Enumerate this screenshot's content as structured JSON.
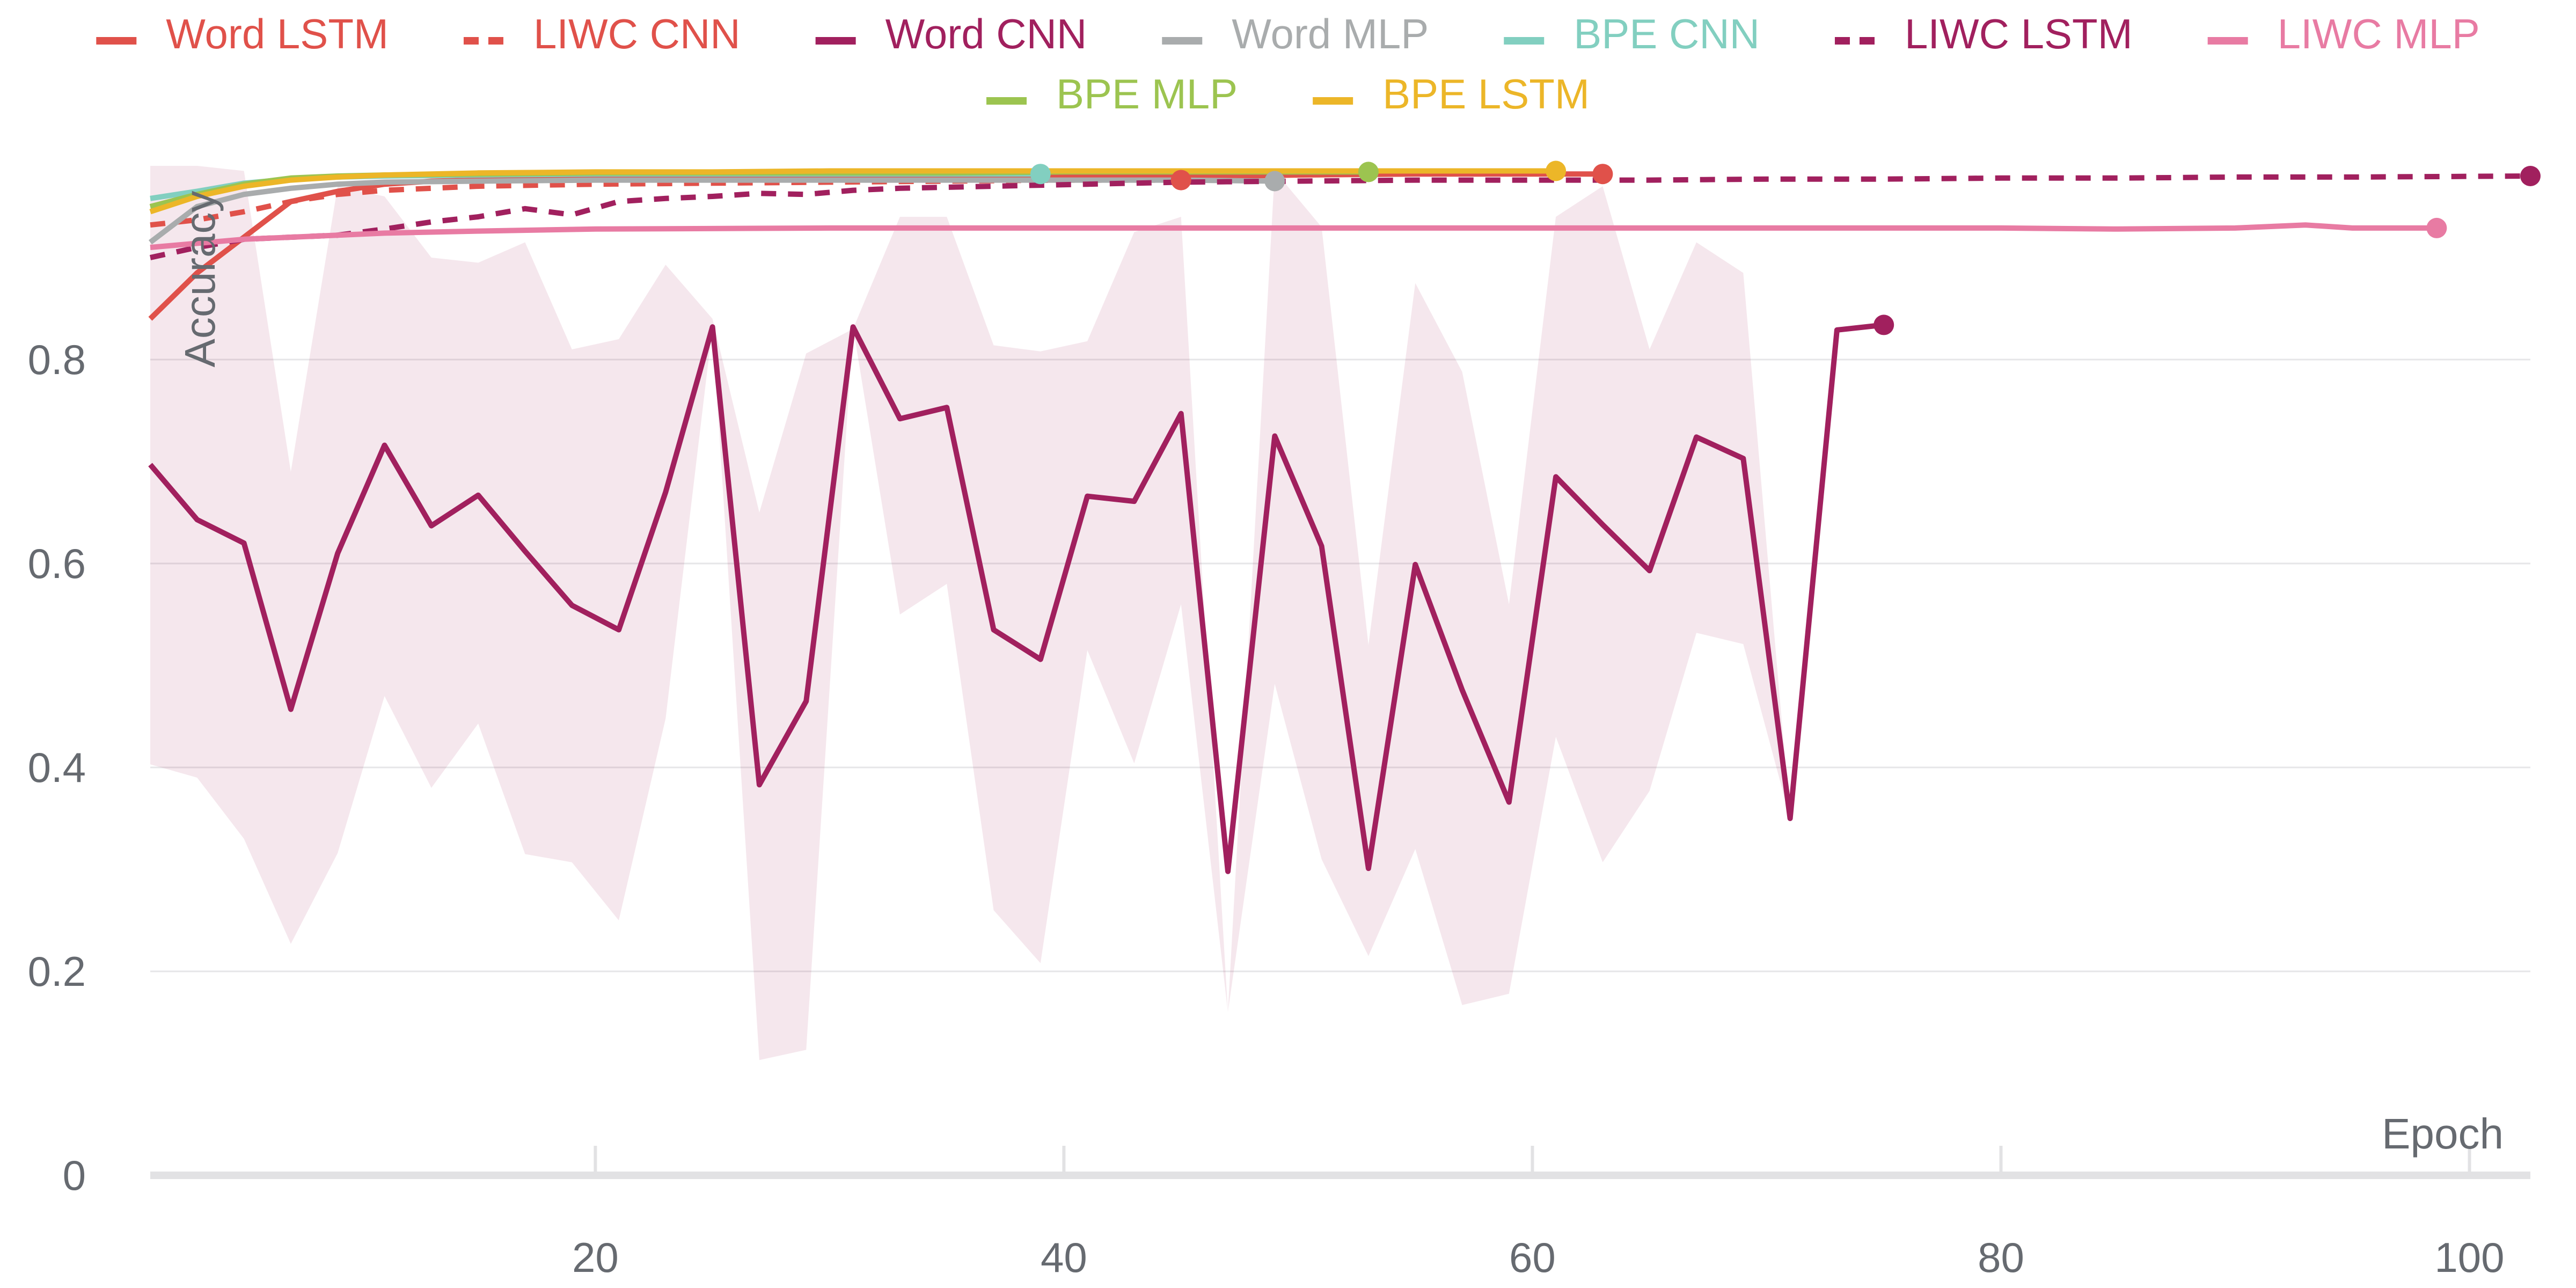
{
  "chart_data": {
    "type": "line",
    "title": "",
    "xlabel": "Epoch",
    "ylabel": "Accuracy",
    "xlim": [
      1,
      102.6
    ],
    "ylim": [
      0,
      1
    ],
    "x_ticks": [
      20,
      40,
      60,
      80,
      100
    ],
    "y_ticks": [
      0,
      0.2,
      0.4,
      0.6,
      0.8
    ],
    "y_tick_labels": [
      "0",
      "0.2",
      "0.4",
      "0.6",
      "0.8"
    ],
    "grid": "horizontal",
    "legend_position": "top-center",
    "series": [
      {
        "name": "Word LSTM",
        "color": "#e0514a",
        "dash": false,
        "x": [
          1,
          3,
          5,
          7,
          9,
          11,
          13,
          15,
          17,
          20,
          25,
          30,
          35,
          40,
          45,
          50,
          55,
          60,
          63
        ],
        "y": [
          0.84,
          0.885,
          0.92,
          0.955,
          0.965,
          0.972,
          0.975,
          0.976,
          0.977,
          0.978,
          0.979,
          0.979,
          0.98,
          0.98,
          0.979,
          0.981,
          0.982,
          0.982,
          0.982
        ]
      },
      {
        "name": "LIWC CNN",
        "color": "#e0514a",
        "dash": true,
        "x": [
          1,
          3,
          5,
          7,
          9,
          11,
          13,
          15,
          20,
          25,
          30,
          35,
          40,
          45
        ],
        "y": [
          0.932,
          0.937,
          0.945,
          0.955,
          0.962,
          0.966,
          0.968,
          0.97,
          0.972,
          0.973,
          0.974,
          0.975,
          0.976,
          0.976
        ]
      },
      {
        "name": "Word CNN",
        "color": "#a1205e",
        "dash": false,
        "x": [
          1,
          3,
          5,
          7,
          9,
          11,
          13,
          15,
          17,
          19,
          21,
          23,
          25,
          27,
          29,
          31,
          33,
          35,
          37,
          39,
          41,
          43,
          45,
          47,
          49,
          51,
          53,
          55,
          57,
          59,
          61,
          63,
          65,
          67,
          69,
          71,
          73,
          75
        ],
        "y": [
          0.697,
          0.643,
          0.62,
          0.457,
          0.61,
          0.716,
          0.637,
          0.667,
          0.612,
          0.559,
          0.535,
          0.67,
          0.832,
          0.383,
          0.465,
          0.832,
          0.742,
          0.753,
          0.535,
          0.506,
          0.666,
          0.661,
          0.747,
          0.298,
          0.725,
          0.617,
          0.301,
          0.599,
          0.476,
          0.366,
          0.685,
          0.638,
          0.593,
          0.724,
          0.703,
          0.35,
          0.829,
          0.834
        ],
        "band_upper": [
          0.99,
          0.99,
          0.985,
          0.69,
          0.97,
          0.96,
          0.9,
          0.895,
          0.915,
          0.81,
          0.82,
          0.893,
          0.84,
          0.65,
          0.806,
          0.83,
          0.94,
          0.94,
          0.814,
          0.808,
          0.818,
          0.925,
          0.94,
          0.16,
          0.985,
          0.93,
          0.52,
          0.875,
          0.788,
          0.56,
          0.94,
          0.97,
          0.81,
          0.915,
          0.885,
          0.35,
          0.829,
          0.834
        ],
        "band_lower": [
          0.403,
          0.39,
          0.33,
          0.227,
          0.316,
          0.47,
          0.38,
          0.443,
          0.315,
          0.307,
          0.25,
          0.448,
          0.832,
          0.113,
          0.123,
          0.832,
          0.55,
          0.58,
          0.26,
          0.208,
          0.515,
          0.404,
          0.56,
          0.16,
          0.482,
          0.31,
          0.215,
          0.32,
          0.167,
          0.178,
          0.43,
          0.307,
          0.377,
          0.532,
          0.521,
          0.35,
          0.829,
          0.834
        ]
      },
      {
        "name": "Word MLP",
        "color": "#a9acad",
        "dash": false,
        "x": [
          1,
          3,
          5,
          7,
          9,
          11,
          15,
          20,
          25,
          30,
          35,
          40,
          45,
          49
        ],
        "y": [
          0.915,
          0.95,
          0.962,
          0.968,
          0.972,
          0.974,
          0.975,
          0.976,
          0.976,
          0.976,
          0.976,
          0.976,
          0.976,
          0.975
        ]
      },
      {
        "name": "BPE CNN",
        "color": "#82cfc0",
        "dash": false,
        "x": [
          1,
          3,
          5,
          7,
          9,
          11,
          15,
          20,
          25,
          30,
          35,
          39
        ],
        "y": [
          0.958,
          0.965,
          0.973,
          0.977,
          0.979,
          0.98,
          0.981,
          0.982,
          0.982,
          0.982,
          0.982,
          0.982
        ]
      },
      {
        "name": "LIWC LSTM",
        "color": "#a1205e",
        "dash": true,
        "x": [
          1,
          3,
          5,
          7,
          9,
          11,
          13,
          15,
          17,
          19,
          21,
          23,
          25,
          27,
          29,
          31,
          33,
          35,
          37,
          39,
          41,
          43,
          45,
          50,
          55,
          60,
          65,
          70,
          75,
          80,
          85,
          90,
          95,
          102.6
        ],
        "y": [
          0.9,
          0.91,
          0.918,
          0.92,
          0.922,
          0.928,
          0.935,
          0.94,
          0.948,
          0.942,
          0.955,
          0.958,
          0.96,
          0.963,
          0.962,
          0.966,
          0.968,
          0.969,
          0.97,
          0.971,
          0.972,
          0.973,
          0.974,
          0.975,
          0.976,
          0.976,
          0.976,
          0.977,
          0.977,
          0.978,
          0.978,
          0.979,
          0.979,
          0.98
        ]
      },
      {
        "name": "LIWC MLP",
        "color": "#e87ba3",
        "dash": false,
        "x": [
          1,
          3,
          5,
          7,
          9,
          11,
          15,
          20,
          30,
          40,
          50,
          60,
          70,
          80,
          85,
          90,
          93,
          95,
          98.6
        ],
        "y": [
          0.91,
          0.914,
          0.918,
          0.92,
          0.922,
          0.924,
          0.926,
          0.928,
          0.929,
          0.929,
          0.929,
          0.929,
          0.929,
          0.929,
          0.928,
          0.929,
          0.932,
          0.929,
          0.929
        ]
      },
      {
        "name": "BPE MLP",
        "color": "#9cc450",
        "dash": false,
        "x": [
          1,
          3,
          5,
          7,
          9,
          11,
          15,
          20,
          25,
          30,
          35,
          40,
          45,
          50,
          53
        ],
        "y": [
          0.95,
          0.962,
          0.972,
          0.978,
          0.98,
          0.981,
          0.982,
          0.983,
          0.983,
          0.983,
          0.983,
          0.984,
          0.984,
          0.984,
          0.984
        ]
      },
      {
        "name": "BPE LSTM",
        "color": "#ecb628",
        "dash": false,
        "x": [
          1,
          3,
          5,
          7,
          9,
          11,
          15,
          20,
          25,
          30,
          35,
          40,
          45,
          50,
          55,
          61
        ],
        "y": [
          0.945,
          0.96,
          0.97,
          0.976,
          0.979,
          0.981,
          0.983,
          0.984,
          0.984,
          0.985,
          0.985,
          0.985,
          0.985,
          0.985,
          0.985,
          0.985
        ]
      }
    ]
  }
}
